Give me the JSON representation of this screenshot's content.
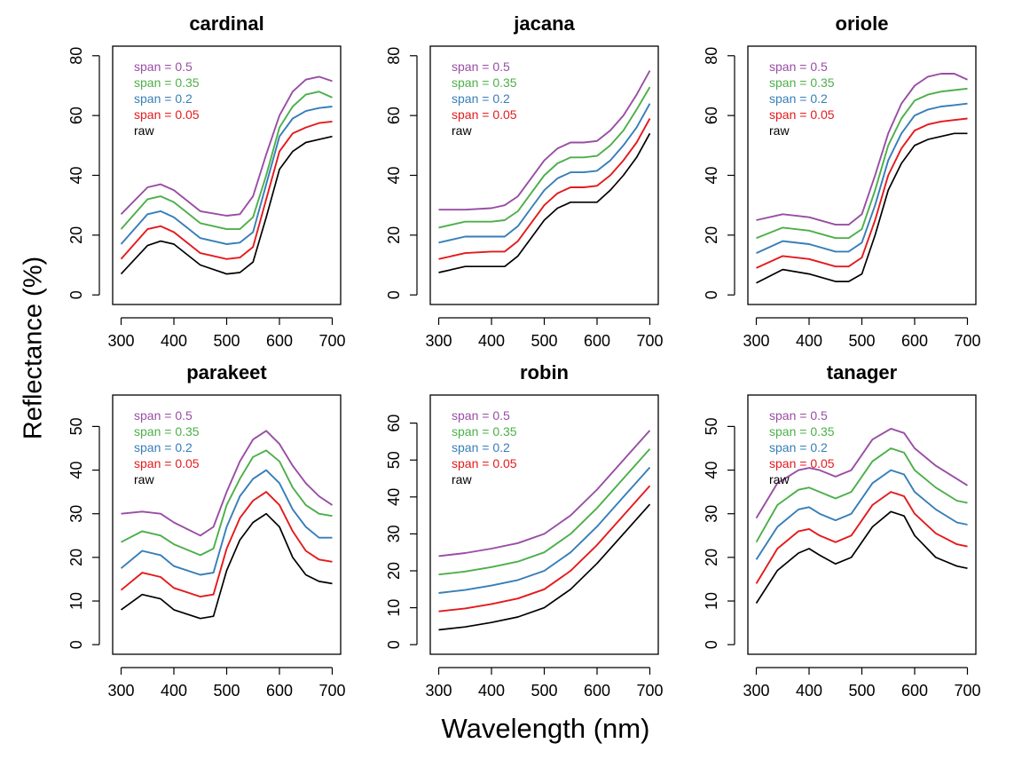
{
  "figure": {
    "xlabel": "Wavelength (nm)",
    "ylabel": "Reflectance (%)"
  },
  "legend_labels": [
    "span = 0.5",
    "span = 0.35",
    "span = 0.2",
    "span = 0.05",
    "raw"
  ],
  "legend_colors": [
    "#984ea3",
    "#4daf4a",
    "#377eb8",
    "#e41a1c",
    "#000000"
  ],
  "chart_data": [
    {
      "type": "line",
      "title": "cardinal",
      "xlim": [
        300,
        700
      ],
      "ylim": [
        0,
        80
      ],
      "xticks": [
        300,
        400,
        500,
        600,
        700
      ],
      "yticks": [
        0,
        20,
        40,
        60,
        80
      ],
      "x": [
        300,
        350,
        375,
        400,
        450,
        500,
        525,
        550,
        575,
        600,
        625,
        650,
        675,
        700
      ],
      "series": [
        {
          "name": "span = 0.5",
          "values": [
            27,
            36,
            37,
            35,
            28,
            26.5,
            27,
            33,
            47,
            60,
            68,
            72,
            73,
            71.5
          ]
        },
        {
          "name": "span = 0.35",
          "values": [
            22,
            32,
            33,
            31,
            24,
            22,
            22,
            26,
            40,
            56,
            63,
            67,
            68,
            66
          ]
        },
        {
          "name": "span = 0.2",
          "values": [
            17,
            27,
            28,
            26,
            19,
            17,
            17.5,
            21,
            37,
            53,
            59,
            61.5,
            62.5,
            63
          ]
        },
        {
          "name": "span = 0.05",
          "values": [
            12,
            22,
            23,
            21,
            14,
            12,
            12.5,
            16,
            32,
            48,
            54,
            56,
            57.5,
            58
          ]
        },
        {
          "name": "raw",
          "values": [
            7,
            16.5,
            18,
            17,
            10,
            7,
            7.5,
            11,
            26,
            42,
            48,
            51,
            52,
            53
          ]
        }
      ]
    },
    {
      "type": "line",
      "title": "jacana",
      "xlim": [
        300,
        700
      ],
      "ylim": [
        0,
        80
      ],
      "xticks": [
        300,
        400,
        500,
        600,
        700
      ],
      "yticks": [
        0,
        20,
        40,
        60,
        80
      ],
      "x": [
        300,
        350,
        400,
        425,
        450,
        475,
        500,
        525,
        550,
        575,
        600,
        625,
        650,
        675,
        700
      ],
      "series": [
        {
          "name": "span = 0.5",
          "values": [
            28.5,
            28.5,
            29,
            30,
            33,
            39,
            45,
            49,
            51,
            51,
            51.5,
            55,
            60,
            67,
            75
          ]
        },
        {
          "name": "span = 0.35",
          "values": [
            22.5,
            24.5,
            24.5,
            25,
            28,
            34,
            40,
            44,
            46,
            46,
            46.5,
            50,
            55,
            62,
            69.5
          ]
        },
        {
          "name": "span = 0.2",
          "values": [
            17.5,
            19.5,
            19.5,
            19.5,
            23,
            29,
            35,
            39,
            41,
            41,
            41.5,
            45,
            50,
            56,
            64
          ]
        },
        {
          "name": "span = 0.05",
          "values": [
            12,
            14,
            14.5,
            14.5,
            18,
            24,
            30,
            34,
            36,
            36,
            36.5,
            40,
            45,
            51,
            59
          ]
        },
        {
          "name": "raw",
          "values": [
            7.5,
            9.5,
            9.5,
            9.5,
            13,
            19,
            25,
            29,
            31,
            31,
            31,
            35,
            40,
            46,
            54
          ]
        }
      ]
    },
    {
      "type": "line",
      "title": "oriole",
      "xlim": [
        300,
        700
      ],
      "ylim": [
        0,
        80
      ],
      "xticks": [
        300,
        400,
        500,
        600,
        700
      ],
      "yticks": [
        0,
        20,
        40,
        60,
        80
      ],
      "x": [
        300,
        350,
        400,
        450,
        475,
        500,
        525,
        550,
        575,
        600,
        625,
        650,
        675,
        700
      ],
      "series": [
        {
          "name": "span = 0.5",
          "values": [
            25,
            27,
            26,
            23.5,
            23.5,
            27,
            40,
            54,
            64,
            70,
            73,
            74,
            74,
            72
          ]
        },
        {
          "name": "span = 0.35",
          "values": [
            19,
            22.5,
            21.5,
            19,
            19,
            22,
            35,
            50,
            59,
            65,
            67,
            68,
            68.5,
            69
          ]
        },
        {
          "name": "span = 0.2",
          "values": [
            14,
            18,
            17,
            14.5,
            14.5,
            17.5,
            30,
            45,
            54,
            60,
            62,
            63,
            63.5,
            64
          ]
        },
        {
          "name": "span = 0.05",
          "values": [
            9,
            13,
            12,
            9.5,
            9.5,
            12.5,
            25,
            40,
            49,
            55,
            57,
            58,
            58.5,
            59
          ]
        },
        {
          "name": "raw",
          "values": [
            4,
            8.5,
            7,
            4.5,
            4.5,
            7,
            20,
            35,
            44,
            50,
            52,
            53,
            54,
            54
          ]
        }
      ]
    },
    {
      "type": "line",
      "title": "parakeet",
      "xlim": [
        300,
        700
      ],
      "ylim": [
        0,
        55
      ],
      "xticks": [
        300,
        400,
        500,
        600,
        700
      ],
      "yticks": [
        0,
        10,
        20,
        30,
        40,
        50
      ],
      "x": [
        300,
        340,
        375,
        400,
        450,
        475,
        500,
        525,
        550,
        575,
        600,
        625,
        650,
        675,
        700
      ],
      "series": [
        {
          "name": "span = 0.5",
          "values": [
            30,
            30.5,
            30,
            28,
            25,
            27,
            35,
            42,
            47,
            49,
            46,
            41,
            37,
            34,
            32
          ]
        },
        {
          "name": "span = 0.35",
          "values": [
            23.5,
            26,
            25,
            23,
            20.5,
            22,
            32,
            38,
            43,
            44.5,
            42,
            36,
            32,
            30,
            29.5
          ]
        },
        {
          "name": "span = 0.2",
          "values": [
            17.5,
            21.5,
            20.5,
            18,
            16,
            16.5,
            27,
            34,
            38,
            40,
            37,
            31,
            27,
            24.5,
            24.5
          ]
        },
        {
          "name": "span = 0.05",
          "values": [
            12.5,
            16.5,
            15.5,
            13,
            11,
            11.5,
            22,
            29,
            33,
            35,
            32,
            26,
            21.5,
            19.5,
            19
          ]
        },
        {
          "name": "raw",
          "values": [
            8,
            11.5,
            10.5,
            8,
            6,
            6.5,
            17,
            24,
            28,
            30,
            27,
            20,
            16,
            14.5,
            14
          ]
        }
      ]
    },
    {
      "type": "line",
      "title": "robin",
      "xlim": [
        300,
        700
      ],
      "ylim": [
        0,
        65
      ],
      "xticks": [
        300,
        400,
        500,
        600,
        700
      ],
      "yticks": [
        0,
        10,
        20,
        30,
        40,
        50,
        60
      ],
      "x": [
        300,
        350,
        400,
        450,
        500,
        550,
        600,
        650,
        700
      ],
      "series": [
        {
          "name": "span = 0.5",
          "values": [
            24,
            24.8,
            26,
            27.5,
            30,
            35,
            42,
            50,
            58
          ]
        },
        {
          "name": "span = 0.35",
          "values": [
            19,
            19.8,
            21,
            22.5,
            25,
            30,
            37,
            45,
            53
          ]
        },
        {
          "name": "span = 0.2",
          "values": [
            14,
            14.8,
            16,
            17.5,
            20,
            25,
            32,
            40,
            48
          ]
        },
        {
          "name": "span = 0.05",
          "values": [
            9,
            9.8,
            11,
            12.5,
            15,
            20,
            27,
            35,
            43
          ]
        },
        {
          "name": "raw",
          "values": [
            4,
            4.8,
            6,
            7.5,
            10,
            15,
            22,
            30,
            38
          ]
        }
      ]
    },
    {
      "type": "line",
      "title": "tanager",
      "xlim": [
        300,
        700
      ],
      "ylim": [
        0,
        55
      ],
      "xticks": [
        300,
        400,
        500,
        600,
        700
      ],
      "yticks": [
        0,
        10,
        20,
        30,
        40,
        50
      ],
      "x": [
        300,
        340,
        380,
        400,
        420,
        450,
        480,
        520,
        555,
        580,
        600,
        640,
        680,
        700
      ],
      "series": [
        {
          "name": "span = 0.5",
          "values": [
            29,
            37,
            40,
            40.5,
            40,
            38.5,
            40,
            47,
            49.5,
            48.5,
            45,
            41,
            38,
            36.5
          ]
        },
        {
          "name": "span = 0.35",
          "values": [
            23.5,
            32,
            35.5,
            36,
            35,
            33.5,
            35,
            42,
            45,
            44,
            40,
            36,
            33,
            32.5
          ]
        },
        {
          "name": "span = 0.2",
          "values": [
            19.5,
            27,
            31,
            31.5,
            30,
            28.5,
            30,
            37,
            40,
            39,
            35,
            31,
            28,
            27.5
          ]
        },
        {
          "name": "span = 0.05",
          "values": [
            14,
            22,
            26,
            26.5,
            25,
            23.5,
            25,
            32,
            35,
            34,
            30,
            25.5,
            23,
            22.5
          ]
        },
        {
          "name": "raw",
          "values": [
            9.5,
            17,
            21,
            22,
            20.5,
            18.5,
            20,
            27,
            30.5,
            29.5,
            25,
            20,
            18,
            17.5
          ]
        }
      ]
    }
  ]
}
